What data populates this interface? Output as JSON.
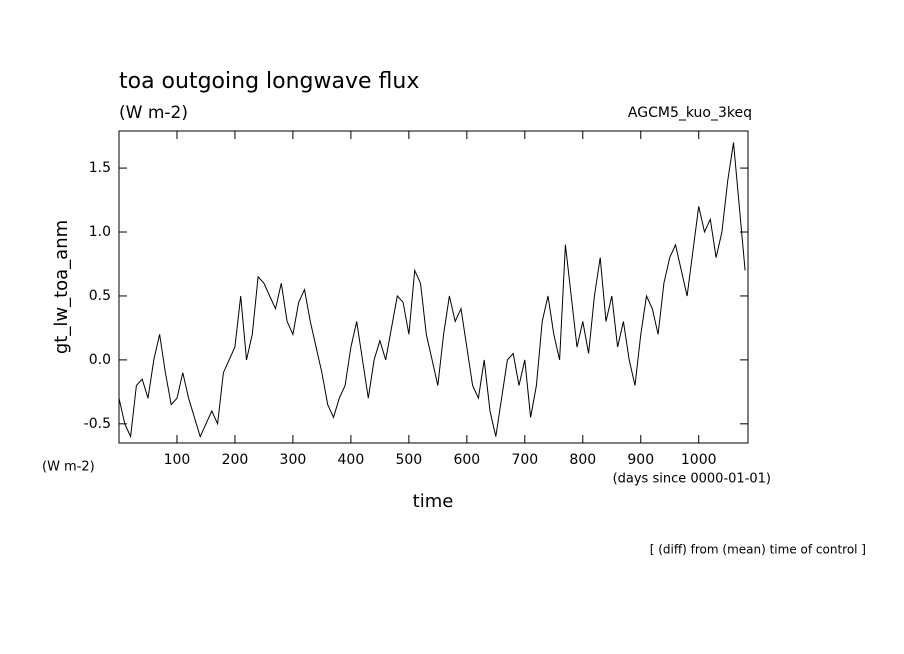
{
  "chart_data": {
    "type": "line",
    "title": "toa outgoing longwave flux",
    "subtitle": "(W m-2)",
    "annotation_right": "AGCM5_kuo_3keq",
    "ylabel": "gt_lw_toa_anm",
    "xlabel": "time",
    "y_units": "(W m-2)",
    "x_units": "(days since 0000-01-01)",
    "footnote": "[ (diff) from (mean) time of control ]",
    "x": [
      0,
      10,
      20,
      30,
      40,
      50,
      60,
      70,
      80,
      90,
      100,
      110,
      120,
      130,
      140,
      150,
      160,
      170,
      180,
      190,
      200,
      210,
      220,
      230,
      240,
      250,
      260,
      270,
      280,
      290,
      300,
      310,
      320,
      330,
      340,
      350,
      360,
      370,
      380,
      390,
      400,
      410,
      420,
      430,
      440,
      450,
      460,
      470,
      480,
      490,
      500,
      510,
      520,
      530,
      540,
      550,
      560,
      570,
      580,
      590,
      600,
      610,
      620,
      630,
      640,
      650,
      660,
      670,
      680,
      690,
      700,
      710,
      720,
      730,
      740,
      750,
      760,
      770,
      780,
      790,
      800,
      810,
      820,
      830,
      840,
      850,
      860,
      870,
      880,
      890,
      900,
      910,
      920,
      930,
      940,
      950,
      960,
      970,
      980,
      990,
      1000,
      1010,
      1020,
      1030,
      1040,
      1050,
      1060,
      1070,
      1080
    ],
    "series": [
      {
        "name": "gt_lw_toa_anm",
        "color": "#000000",
        "values": [
          -0.3,
          -0.5,
          -0.6,
          -0.2,
          -0.15,
          -0.3,
          0.0,
          0.2,
          -0.1,
          -0.35,
          -0.3,
          -0.1,
          -0.3,
          -0.45,
          -0.6,
          -0.5,
          -0.4,
          -0.5,
          -0.1,
          0.0,
          0.1,
          0.5,
          0.0,
          0.2,
          0.65,
          0.6,
          0.5,
          0.4,
          0.6,
          0.3,
          0.2,
          0.45,
          0.55,
          0.3,
          0.1,
          -0.1,
          -0.35,
          -0.45,
          -0.3,
          -0.2,
          0.1,
          0.3,
          0.0,
          -0.3,
          0.0,
          0.15,
          0.0,
          0.25,
          0.5,
          0.45,
          0.2,
          0.7,
          0.6,
          0.2,
          0.0,
          -0.2,
          0.2,
          0.5,
          0.3,
          0.4,
          0.1,
          -0.2,
          -0.3,
          0.0,
          -0.4,
          -0.6,
          -0.3,
          0.0,
          0.05,
          -0.2,
          0.0,
          -0.45,
          -0.2,
          0.3,
          0.5,
          0.2,
          0.0,
          0.9,
          0.5,
          0.1,
          0.3,
          0.05,
          0.5,
          0.8,
          0.3,
          0.5,
          0.1,
          0.3,
          0.0,
          -0.2,
          0.2,
          0.5,
          0.4,
          0.2,
          0.6,
          0.8,
          0.9,
          0.7,
          0.5,
          0.85,
          1.2,
          1.0,
          1.1,
          0.8,
          1.0,
          1.4,
          1.7,
          1.2,
          0.7
        ]
      }
    ],
    "xlim": [
      0,
      1085
    ],
    "ylim": [
      -0.65,
      1.79
    ],
    "xticks": [
      100,
      200,
      300,
      400,
      500,
      600,
      700,
      800,
      900,
      1000
    ],
    "yticks": [
      {
        "value": -0.5,
        "label": "-0.5"
      },
      {
        "value": 0,
        "label": "0.0"
      },
      {
        "value": 0.5,
        "label": "0.5"
      },
      {
        "value": 1,
        "label": "1.0"
      },
      {
        "value": 1.5,
        "label": "1.5"
      }
    ],
    "grid": false
  }
}
